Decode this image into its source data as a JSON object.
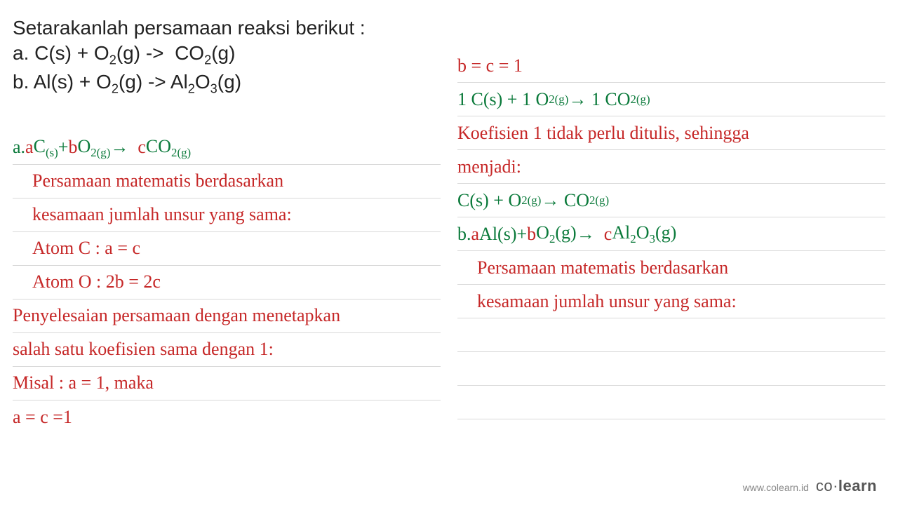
{
  "colors": {
    "red": "#c62828",
    "green": "#0b7a3b",
    "text": "#222222",
    "rule": "#d9d9d9",
    "background": "#ffffff"
  },
  "left": {
    "q_title": "Setarakanlah persamaan reaksi berikut :",
    "q_a_html": "a. C(s) + O<sub>2</sub>(g) -> &nbsp;CO<sub>2</sub>(g)",
    "q_b_html": "b. Al(s) + O<sub>2</sub>(g) -> Al<sub>2</sub>O<sub>3</sub>(g)",
    "l1_html": "a. <span class='red'>a</span> <span class='green'>C<sub>(s)</sub></span> + <span class='red'>b</span> <span class='green'>O<sub>2(g)</sub></span> &rarr; &nbsp; <span class='red'>c</span><span class='green'>CO<sub>2(g)</sub></span>",
    "l2": "Persamaan matematis berdasarkan",
    "l3": "kesamaan jumlah unsur yang sama:",
    "l4": "Atom C :  a = c",
    "l5": "Atom O : 2b = 2c",
    "l6": "Penyelesaian persamaan dengan menetapkan",
    "l7": "salah satu koefisien sama dengan 1:",
    "l8": "Misal : a = 1, maka",
    "l9": "a = c =1"
  },
  "right": {
    "r1": "b = c = 1",
    "r2_html": "1 C(s) + 1 O<sub>2(g)</sub> &rarr; 1 CO<sub>2(g)</sub>",
    "r3": "Koefisien 1 tidak perlu ditulis, sehingga",
    "r4": "menjadi:",
    "r5_html": "C(s) + O<sub>2(g)</sub> &rarr; CO<sub>2(g)</sub>",
    "r6_html": "b. <span class='red'>a</span> <span class='green'>Al(s)</span> + <span class='red'>b</span> <span class='green'>O<sub>2</sub>(g)</span> &rarr; &nbsp;<span class='red'>c</span> <span class='green'>Al<sub>2</sub>O<sub>3</sub>(g)</span>",
    "r7": "Persamaan matematis berdasarkan",
    "r8": "kesamaan jumlah unsur yang sama:"
  },
  "footer": {
    "url": "www.colearn.id",
    "brand_html": "co&middot;<b>learn</b>"
  }
}
